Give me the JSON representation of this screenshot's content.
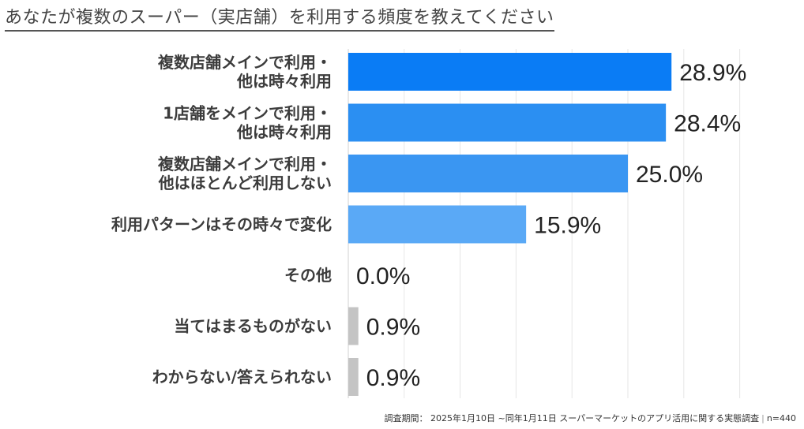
{
  "title": "あなたが複数のスーパー（実店舗）を利用する頻度を教えてください",
  "footnote": {
    "period": "調査期間： 2025年1月10日 ~同年1月11日 スーパーマーケットのアプリ活用に関する実態調査",
    "sample": "n=440"
  },
  "chart_data": {
    "type": "bar",
    "orientation": "horizontal",
    "categories": [
      [
        "複数店舗メインで利用・",
        "他は時々利用"
      ],
      [
        "1店舗をメインで利用・",
        "他は時々利用"
      ],
      [
        "複数店舗メインで利用・",
        "他はほとんど利用しない"
      ],
      [
        "利用パターンはその時々で変化"
      ],
      [
        "その他"
      ],
      [
        "当てはまるものがない"
      ],
      [
        "わからない/答えられない"
      ]
    ],
    "values": [
      28.9,
      28.4,
      25.0,
      15.9,
      0.0,
      0.9,
      0.9
    ],
    "value_labels": [
      "28.9%",
      "28.4%",
      "25.0%",
      "15.9%",
      "0.0%",
      "0.9%",
      "0.9%"
    ],
    "unit": "%",
    "xlim": [
      0,
      35
    ],
    "grid": true,
    "colors": [
      "#0a7cf5",
      "#2b8ff2",
      "#3a96f2",
      "#5aa9f6",
      "#5aa9f6",
      "#c4c4c4",
      "#c4c4c4"
    ]
  }
}
